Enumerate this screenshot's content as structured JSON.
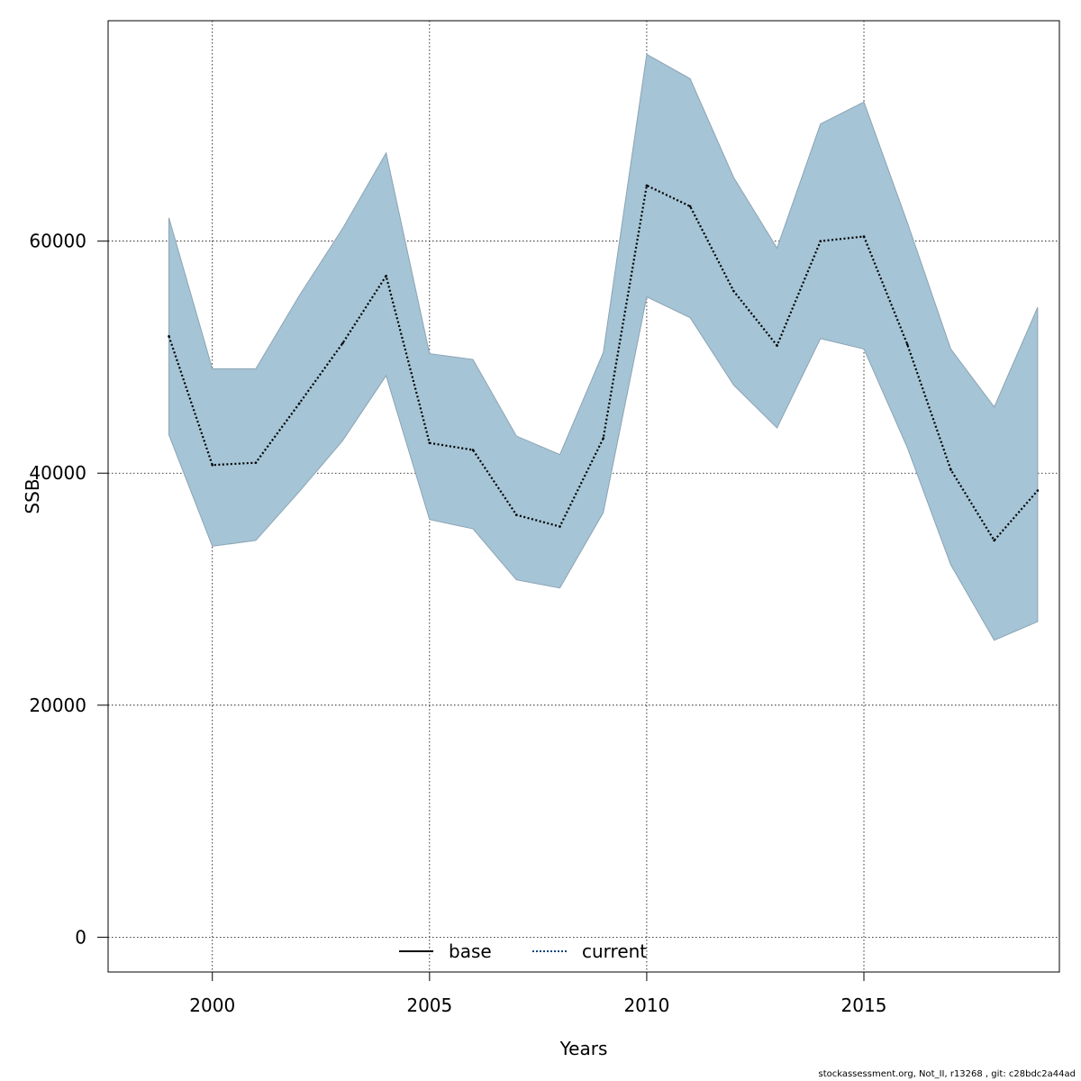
{
  "chart_data": {
    "type": "area",
    "xlabel": "Years",
    "ylabel": "SSB",
    "xlim": [
      1997.6,
      2019.5
    ],
    "ylim": [
      -3000,
      79000
    ],
    "xticks": [
      2000,
      2005,
      2010,
      2015
    ],
    "yticks": [
      0,
      20000,
      40000,
      60000
    ],
    "grid": true,
    "legend_position": "bottom-center",
    "x": [
      1999,
      2000,
      2001,
      2002,
      2003,
      2004,
      2005,
      2006,
      2007,
      2008,
      2009,
      2010,
      2011,
      2012,
      2013,
      2014,
      2015,
      2016,
      2017,
      2018,
      2019
    ],
    "series": [
      {
        "name": "base",
        "line_style": "solid",
        "color": "#000000",
        "values": [
          null,
          null,
          null,
          null,
          null,
          null,
          null,
          null,
          null,
          null,
          null,
          null,
          null,
          null,
          null,
          null,
          null,
          null,
          null,
          null,
          null
        ]
      },
      {
        "name": "current",
        "line_style": "dotted",
        "color": "#00457a",
        "values": [
          51800,
          40700,
          40900,
          46000,
          51200,
          57000,
          42600,
          42000,
          36400,
          35400,
          43000,
          64800,
          63000,
          55700,
          51000,
          60000,
          60400,
          51100,
          40300,
          34200,
          38500
        ],
        "lower": [
          43300,
          33700,
          34200,
          38400,
          42800,
          48400,
          36000,
          35200,
          30800,
          30100,
          36600,
          55200,
          53400,
          47600,
          43900,
          51600,
          50700,
          42200,
          32100,
          25600,
          27200
        ],
        "upper": [
          62000,
          49000,
          49000,
          55300,
          61100,
          67600,
          50300,
          49800,
          43200,
          41600,
          50400,
          76100,
          74000,
          65500,
          59400,
          70100,
          72000,
          61600,
          50700,
          45700,
          54300
        ]
      }
    ],
    "band_color": "#a5c4d6",
    "band_edge_color": "#8ca4b4"
  },
  "footer": "stockassessment.org, Not_II, r13268 , git: c28bdc2a44ad"
}
